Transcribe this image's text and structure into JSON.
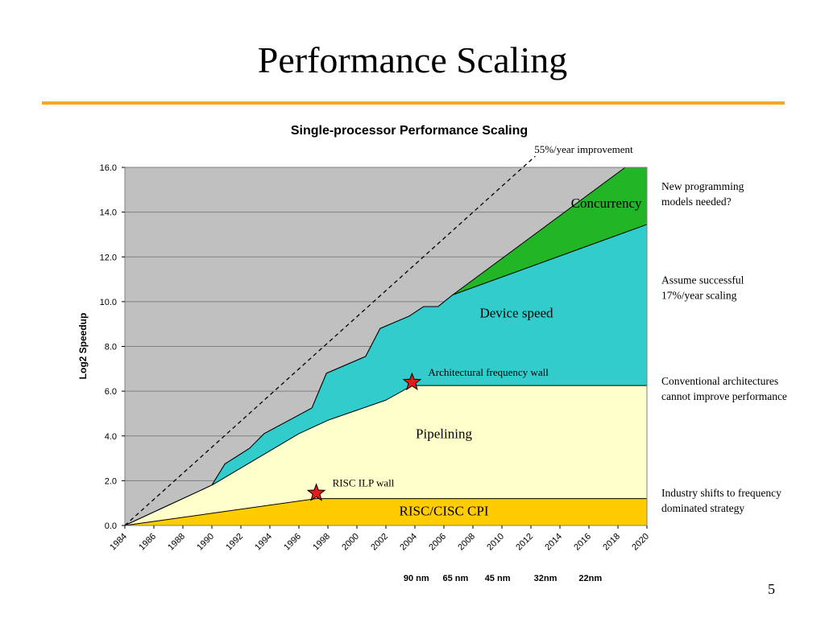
{
  "slide": {
    "title": "Performance Scaling",
    "page_number": "5"
  },
  "colors": {
    "title_rule": "#f5a623",
    "plot_background": "#c0c0c0",
    "concurrency": "#22b526",
    "device_speed": "#33cccc",
    "pipelining": "#ffffcc",
    "risc_cisc_cpi": "#ffcc00",
    "star_marker": "#e31b1b"
  },
  "chart_data": {
    "type": "area",
    "title": "Single-processor Performance Scaling",
    "ylabel": "Log2 Speedup",
    "xlabel": "",
    "xlim": [
      1984,
      2020
    ],
    "ylim": [
      0,
      16
    ],
    "y_ticks": [
      "0.0",
      "2.0",
      "4.0",
      "6.0",
      "8.0",
      "10.0",
      "12.0",
      "14.0",
      "16.0"
    ],
    "x_ticks": [
      "1984",
      "1986",
      "1988",
      "1990",
      "1992",
      "1994",
      "1996",
      "1998",
      "2000",
      "2002",
      "2004",
      "2006",
      "2008",
      "2010",
      "2012",
      "2014",
      "2016",
      "2018",
      "2020"
    ],
    "grid": true,
    "layers": [
      {
        "name": "RISC/CISC CPI",
        "top": [
          [
            1984,
            0
          ],
          [
            1997.2,
            1.2
          ],
          [
            2020,
            1.2
          ]
        ]
      },
      {
        "name": "Pipelining",
        "top": [
          [
            1984,
            0
          ],
          [
            1986.5,
            0.75
          ],
          [
            1989,
            1.5
          ],
          [
            1990,
            1.8
          ],
          [
            1996,
            4.1
          ],
          [
            1998,
            4.7
          ],
          [
            2000,
            5.15
          ],
          [
            2002,
            5.6
          ],
          [
            2003.8,
            6.25
          ],
          [
            2020,
            6.25
          ]
        ]
      },
      {
        "name": "Device speed",
        "top": [
          [
            1984,
            0
          ],
          [
            1986.5,
            0.75
          ],
          [
            1989,
            1.5
          ],
          [
            1990,
            1.8
          ],
          [
            1990.9,
            2.75
          ],
          [
            1992.6,
            3.45
          ],
          [
            1993.6,
            4.1
          ],
          [
            1996.9,
            5.25
          ],
          [
            1997.9,
            6.8
          ],
          [
            2000.6,
            7.55
          ],
          [
            2001.6,
            8.8
          ],
          [
            2003.6,
            9.35
          ],
          [
            2004.6,
            9.78
          ],
          [
            2005.6,
            9.78
          ],
          [
            2006.6,
            10.3
          ],
          [
            2020,
            13.45
          ]
        ]
      },
      {
        "name": "Concurrency",
        "top": [
          [
            1984,
            0
          ],
          [
            1986.5,
            0.75
          ],
          [
            1989,
            1.5
          ],
          [
            1990,
            1.8
          ],
          [
            1990.9,
            2.75
          ],
          [
            1992.6,
            3.45
          ],
          [
            1993.6,
            4.1
          ],
          [
            1996.9,
            5.25
          ],
          [
            1997.9,
            6.8
          ],
          [
            2000.6,
            7.55
          ],
          [
            2001.6,
            8.8
          ],
          [
            2003.6,
            9.35
          ],
          [
            2004.6,
            9.78
          ],
          [
            2005.6,
            9.78
          ],
          [
            2006.6,
            10.3
          ],
          [
            2018.5,
            16
          ],
          [
            2020,
            16
          ]
        ]
      }
    ],
    "trend_line": {
      "label": "55%/year improvement",
      "points": [
        [
          1984,
          0
        ],
        [
          2012.3,
          16.5
        ]
      ]
    },
    "region_labels": [
      {
        "text": "Concurrency",
        "x": 2017.2,
        "y": 14.2
      },
      {
        "text": "Device speed",
        "x": 2011.0,
        "y": 9.3
      },
      {
        "text": "Pipelining",
        "x": 2006.0,
        "y": 3.9
      },
      {
        "text": "RISC/CISC CPI",
        "x": 2006.0,
        "y": 0.45
      }
    ],
    "markers": [
      {
        "label": "Architectural frequency wall",
        "x": 2003.8,
        "y": 6.4
      },
      {
        "label": "RISC ILP wall",
        "x": 1997.2,
        "y": 1.45
      }
    ],
    "side_notes": [
      {
        "lines": [
          "New programming",
          "models needed?"
        ],
        "y": 15.0
      },
      {
        "lines": [
          "Assume successful",
          "17%/year scaling"
        ],
        "y": 10.8
      },
      {
        "lines": [
          "Conventional architectures",
          "cannot improve performance"
        ],
        "y": 6.3
      },
      {
        "lines": [
          "Industry shifts to frequency",
          "dominated strategy"
        ],
        "y": 1.3
      }
    ],
    "process_nodes": [
      {
        "label": "90 nm",
        "x": 2004.1
      },
      {
        "label": "65 nm",
        "x": 2006.8
      },
      {
        "label": "45 nm",
        "x": 2009.7
      },
      {
        "label": "32nm",
        "x": 2013.0
      },
      {
        "label": "22nm",
        "x": 2016.1
      }
    ]
  }
}
